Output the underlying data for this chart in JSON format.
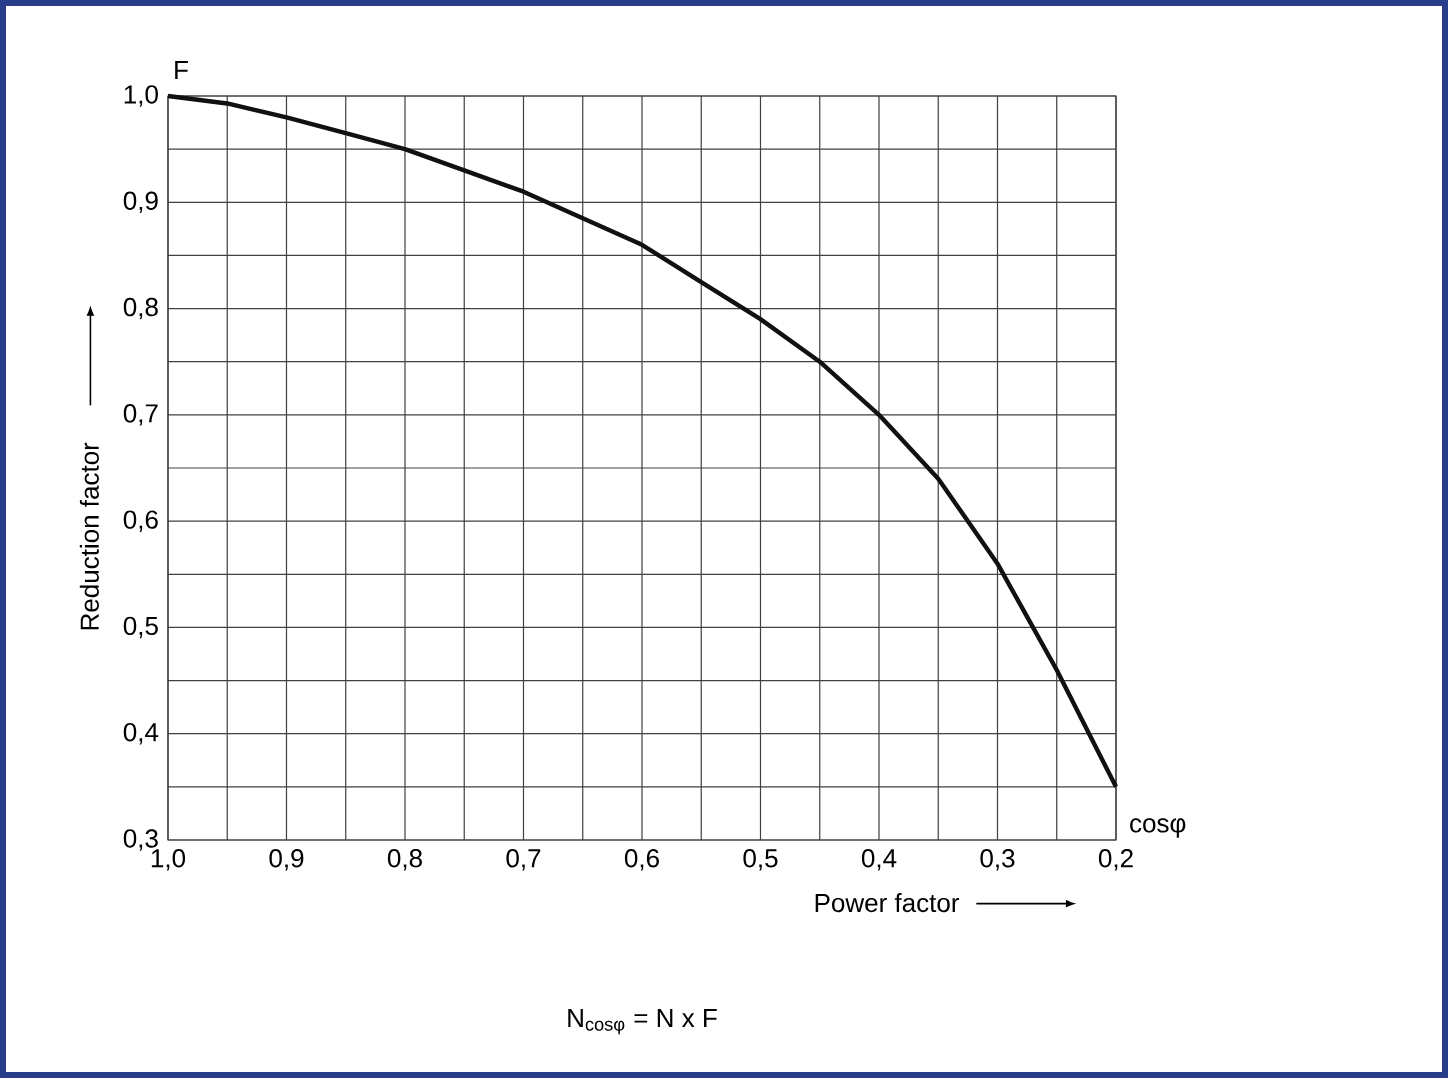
{
  "chart_data": {
    "type": "line",
    "xlabel": "Power factor",
    "ylabel": "Reduction factor",
    "x": [
      1.0,
      0.95,
      0.9,
      0.85,
      0.8,
      0.75,
      0.7,
      0.65,
      0.6,
      0.55,
      0.5,
      0.45,
      0.4,
      0.35,
      0.3,
      0.25,
      0.2
    ],
    "series": [
      {
        "color": "#111111",
        "values": [
          1.0,
          0.993,
          0.98,
          0.965,
          0.95,
          0.93,
          0.91,
          0.885,
          0.86,
          0.825,
          0.79,
          0.75,
          0.7,
          0.64,
          0.56,
          0.46,
          0.35
        ]
      }
    ],
    "xlim": [
      1.0,
      0.2
    ],
    "ylim": [
      0.3,
      1.0
    ],
    "xticks": [
      {
        "value": 1.0,
        "label": "1,0"
      },
      {
        "value": 0.9,
        "label": "0,9"
      },
      {
        "value": 0.8,
        "label": "0,8"
      },
      {
        "value": 0.7,
        "label": "0,7"
      },
      {
        "value": 0.6,
        "label": "0,6"
      },
      {
        "value": 0.5,
        "label": "0,5"
      },
      {
        "value": 0.4,
        "label": "0,4"
      },
      {
        "value": 0.3,
        "label": "0,3"
      },
      {
        "value": 0.2,
        "label": "0,2"
      }
    ],
    "yticks": [
      {
        "value": 0.3,
        "label": "0,3"
      },
      {
        "value": 0.4,
        "label": "0,4"
      },
      {
        "value": 0.5,
        "label": "0,5"
      },
      {
        "value": 0.6,
        "label": "0,6"
      },
      {
        "value": 0.7,
        "label": "0,7"
      },
      {
        "value": 0.8,
        "label": "0,8"
      },
      {
        "value": 0.9,
        "label": "0,9"
      },
      {
        "value": 1.0,
        "label": "1,0"
      }
    ],
    "grid": true,
    "marker": "none",
    "line_style": "solid",
    "annotations": [
      "F",
      "cosφ",
      "N$_{cosφ}$ = N x F"
    ]
  }
}
